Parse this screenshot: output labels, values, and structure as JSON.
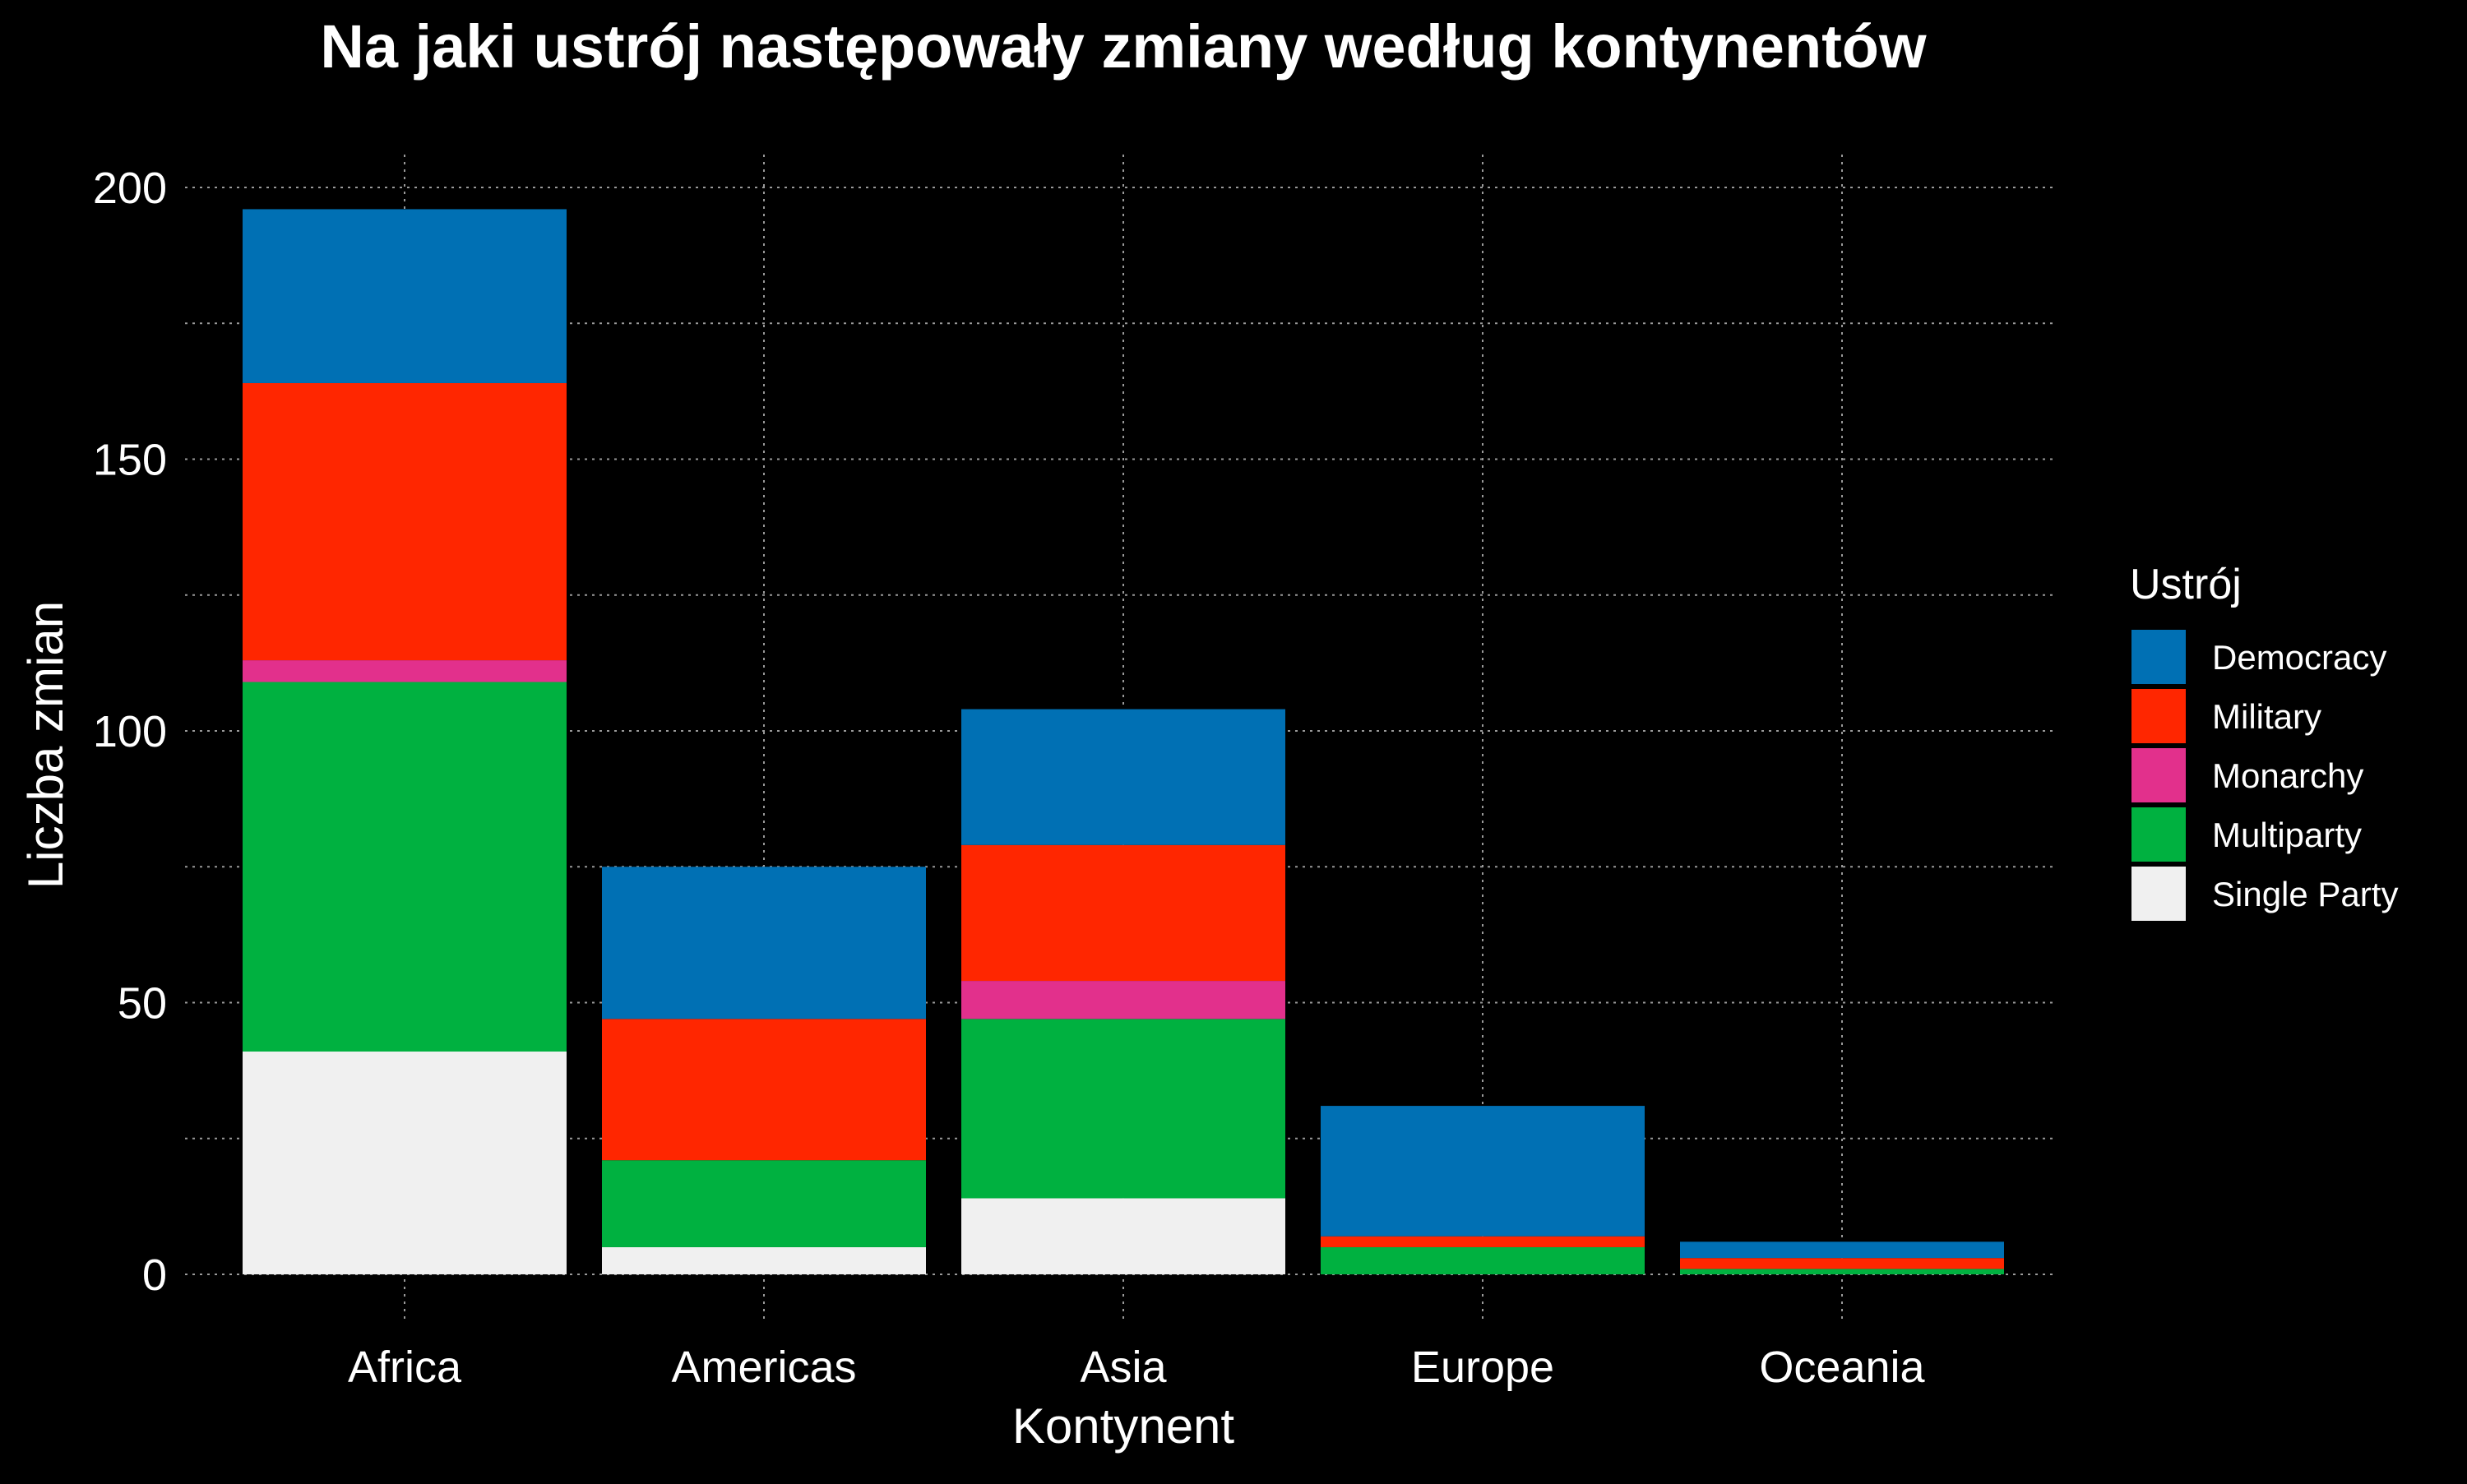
{
  "chart_data": {
    "type": "bar",
    "stacked": true,
    "title": "Na jaki ustrój następowały zmiany według kontynentów",
    "xlabel": "Kontynent",
    "ylabel": "Liczba zmian",
    "categories": [
      "Africa",
      "Americas",
      "Asia",
      "Europe",
      "Oceania"
    ],
    "ylim": [
      0,
      200
    ],
    "yticks": [
      "0",
      "50",
      "100",
      "150",
      "200"
    ],
    "grid": true,
    "legend": {
      "title": "Ustrój",
      "position": "right",
      "entries": [
        "Democracy",
        "Military",
        "Monarchy",
        "Multiparty",
        "Single Party"
      ]
    },
    "series": [
      {
        "name": "Single Party",
        "color": "#f0f0f0",
        "values": [
          41,
          5,
          14,
          0,
          0
        ]
      },
      {
        "name": "Multiparty",
        "color": "#00b140",
        "values": [
          68,
          16,
          33,
          5,
          1
        ]
      },
      {
        "name": "Monarchy",
        "color": "#e2308c",
        "values": [
          4,
          0,
          7,
          0,
          0
        ]
      },
      {
        "name": "Military",
        "color": "#ff2600",
        "values": [
          51,
          26,
          25,
          2,
          2
        ]
      },
      {
        "name": "Democracy",
        "color": "#0070b4",
        "values": [
          32,
          28,
          25,
          24,
          3
        ]
      }
    ]
  }
}
